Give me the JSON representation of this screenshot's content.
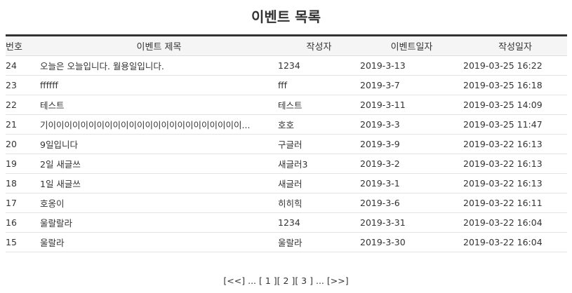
{
  "page_title": "이벤트 목록",
  "table": {
    "headers": {
      "no": "번호",
      "subject": "이벤트 제목",
      "writer": "작성자",
      "event_date": "이벤트일자",
      "reg_date": "작성일자"
    },
    "rows": [
      {
        "no": "24",
        "subject": "오늘은 오늘입니다. 월용일입니다.",
        "writer": "1234",
        "event_date": "2019-3-13",
        "reg_date": "2019-03-25 16:22"
      },
      {
        "no": "23",
        "subject": "ffffff",
        "writer": "fff",
        "event_date": "2019-3-7",
        "reg_date": "2019-03-25 16:18"
      },
      {
        "no": "22",
        "subject": "테스트",
        "writer": "테스트",
        "event_date": "2019-3-11",
        "reg_date": "2019-03-25 14:09"
      },
      {
        "no": "21",
        "subject": "기이이이이이이이이이이이이이이이이이이이이이이이이...",
        "writer": "호호",
        "event_date": "2019-3-3",
        "reg_date": "2019-03-25 11:47"
      },
      {
        "no": "20",
        "subject": "9일입니다",
        "writer": "구글러",
        "event_date": "2019-3-9",
        "reg_date": "2019-03-22 16:13"
      },
      {
        "no": "19",
        "subject": "2일 새글쓰",
        "writer": "새글러3",
        "event_date": "2019-3-2",
        "reg_date": "2019-03-22 16:13"
      },
      {
        "no": "18",
        "subject": "1일 새글쓰",
        "writer": "새글러",
        "event_date": "2019-3-1",
        "reg_date": "2019-03-22 16:13"
      },
      {
        "no": "17",
        "subject": "호옹이",
        "writer": "히히힉",
        "event_date": "2019-3-6",
        "reg_date": "2019-03-22 16:11"
      },
      {
        "no": "16",
        "subject": "울랄랄라",
        "writer": "1234",
        "event_date": "2019-3-31",
        "reg_date": "2019-03-22 16:04"
      },
      {
        "no": "15",
        "subject": "울랄라",
        "writer": "울랄라",
        "event_date": "2019-3-30",
        "reg_date": "2019-03-22 16:04"
      }
    ]
  },
  "pager": {
    "prev": "[<<]",
    "ellipsis_left": "...",
    "page1": "[ 1 ]",
    "page2": "[ 2 ]",
    "page3": "[ 3 ]",
    "ellipsis_right": "...",
    "next": "[>>]"
  }
}
